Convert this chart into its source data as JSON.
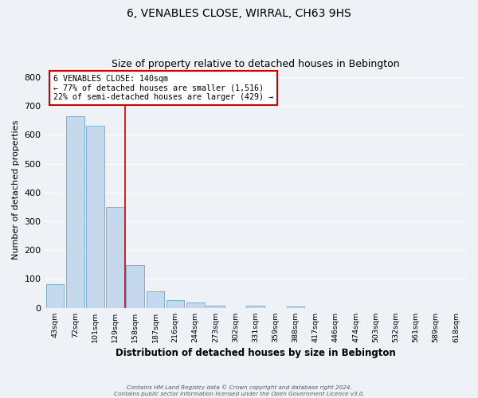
{
  "title": "6, VENABLES CLOSE, WIRRAL, CH63 9HS",
  "subtitle": "Size of property relative to detached houses in Bebington",
  "xlabel": "Distribution of detached houses by size in Bebington",
  "ylabel": "Number of detached properties",
  "bar_labels": [
    "43sqm",
    "72sqm",
    "101sqm",
    "129sqm",
    "158sqm",
    "187sqm",
    "216sqm",
    "244sqm",
    "273sqm",
    "302sqm",
    "331sqm",
    "359sqm",
    "388sqm",
    "417sqm",
    "446sqm",
    "474sqm",
    "503sqm",
    "532sqm",
    "561sqm",
    "589sqm",
    "618sqm"
  ],
  "bar_heights": [
    82,
    663,
    630,
    350,
    148,
    57,
    27,
    18,
    8,
    0,
    7,
    0,
    5,
    0,
    0,
    0,
    0,
    0,
    0,
    0,
    0
  ],
  "bar_color": "#c6d9ec",
  "bar_edge_color": "#7ab0d4",
  "vline_x": 3.5,
  "vline_color": "#cc0000",
  "annotation_title": "6 VENABLES CLOSE: 140sqm",
  "annotation_line1": "← 77% of detached houses are smaller (1,516)",
  "annotation_line2": "22% of semi-detached houses are larger (429) →",
  "ylim": [
    0,
    820
  ],
  "yticks": [
    0,
    100,
    200,
    300,
    400,
    500,
    600,
    700,
    800
  ],
  "footer1": "Contains HM Land Registry data © Crown copyright and database right 2024.",
  "footer2": "Contains public sector information licensed under the Open Government Licence v3.0.",
  "background_color": "#eef2f7",
  "grid_color": "#ffffff",
  "title_fontsize": 10,
  "subtitle_fontsize": 9
}
